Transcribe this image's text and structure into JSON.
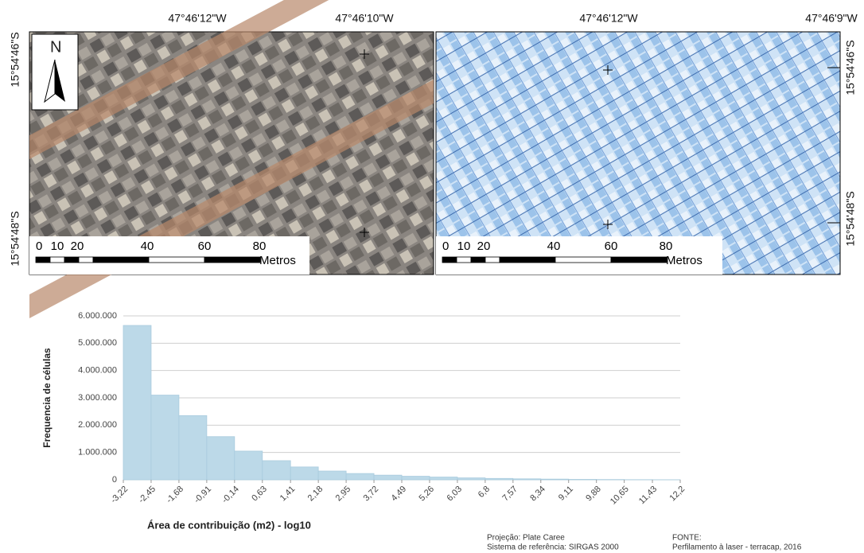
{
  "maps": {
    "left": {
      "top_labels": [
        "47°46'12\"W",
        "47°46'10\"W"
      ],
      "side_labels": [
        "15°54'46\"S",
        "15°54'48\"S"
      ]
    },
    "right": {
      "top_labels": [
        "47°46'12\"W",
        "47°46'9\"W"
      ],
      "side_labels": [
        "15°54'46\"S",
        "15°54'48\"S"
      ]
    },
    "north": "N",
    "scale_labels": [
      "0",
      "10",
      "20",
      "40",
      "60",
      "80"
    ],
    "scale_unit": "Metros"
  },
  "chart_data": {
    "type": "histogram",
    "xlabel": "Área de contribuição (m2) - log10",
    "ylabel": "Frequencia de células",
    "bins": [
      -3.22,
      -2.45,
      -1.68,
      -0.91,
      -0.14,
      0.63,
      1.41,
      2.18,
      2.95,
      3.72,
      4.49,
      5.26,
      6.03,
      6.8,
      7.57,
      8.34,
      9.11,
      9.88,
      10.65,
      11.43,
      12.2
    ],
    "values": [
      5650000,
      3100000,
      2350000,
      1580000,
      1050000,
      700000,
      470000,
      320000,
      230000,
      170000,
      130000,
      100000,
      70000,
      50000,
      35000,
      25000,
      15000,
      10000,
      5000,
      3000
    ],
    "color": "#bcd9e8",
    "xlim": [
      -3.22,
      12.2
    ],
    "xticks": [
      {
        "value": -3.22,
        "label": "-3,22"
      },
      {
        "value": -2.45,
        "label": "-2,45"
      },
      {
        "value": -1.68,
        "label": "-1,68"
      },
      {
        "value": -0.91,
        "label": "-0,91"
      },
      {
        "value": -0.14,
        "label": "-0,14"
      },
      {
        "value": 0.63,
        "label": "0,63"
      },
      {
        "value": 1.41,
        "label": "1,41"
      },
      {
        "value": 2.18,
        "label": "2,18"
      },
      {
        "value": 2.95,
        "label": "2,95"
      },
      {
        "value": 3.72,
        "label": "3,72"
      },
      {
        "value": 4.49,
        "label": "4,49"
      },
      {
        "value": 5.26,
        "label": "5,26"
      },
      {
        "value": 6.03,
        "label": "6,03"
      },
      {
        "value": 6.8,
        "label": "6,8"
      },
      {
        "value": 7.57,
        "label": "7,57"
      },
      {
        "value": 8.34,
        "label": "8,34"
      },
      {
        "value": 9.11,
        "label": "9,11"
      },
      {
        "value": 9.88,
        "label": "9,88"
      },
      {
        "value": 10.65,
        "label": "10,65"
      },
      {
        "value": 11.43,
        "label": "11,43"
      },
      {
        "value": 12.2,
        "label": "12,2"
      }
    ],
    "ylim": [
      0,
      6000000
    ],
    "yticks": [
      0,
      {
        "value": 1000000,
        "label": "1.000.000"
      },
      {
        "value": 2000000,
        "label": "2.000.000"
      },
      {
        "value": 3000000,
        "label": "3.000.000"
      },
      {
        "value": 4000000,
        "label": "4.000.000"
      },
      {
        "value": 5000000,
        "label": "5.000.000"
      },
      {
        "value": 6000000,
        "label": "6.000.000"
      }
    ],
    "grid": true
  },
  "footer": {
    "projection": "Projeção: Plate Caree",
    "reference": "Sistema de referência: SIRGAS 2000",
    "source_title": "FONTE:",
    "source": "Perfilamento à laser - terracap, 2016"
  }
}
